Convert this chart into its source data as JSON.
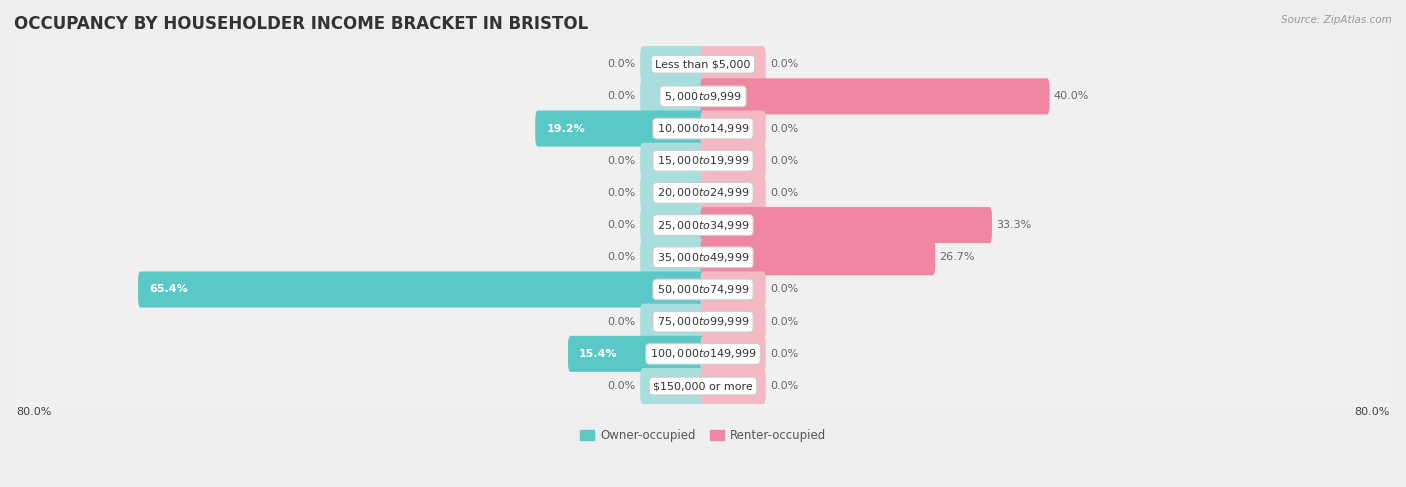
{
  "title": "OCCUPANCY BY HOUSEHOLDER INCOME BRACKET IN BRISTOL",
  "source": "Source: ZipAtlas.com",
  "categories": [
    "Less than $5,000",
    "$5,000 to $9,999",
    "$10,000 to $14,999",
    "$15,000 to $19,999",
    "$20,000 to $24,999",
    "$25,000 to $34,999",
    "$35,000 to $49,999",
    "$50,000 to $74,999",
    "$75,000 to $99,999",
    "$100,000 to $149,999",
    "$150,000 or more"
  ],
  "owner_values": [
    0.0,
    0.0,
    19.2,
    0.0,
    0.0,
    0.0,
    0.0,
    65.4,
    0.0,
    15.4,
    0.0
  ],
  "renter_values": [
    0.0,
    40.0,
    0.0,
    0.0,
    0.0,
    33.3,
    26.7,
    0.0,
    0.0,
    0.0,
    0.0
  ],
  "owner_color": "#5BC8C8",
  "renter_color": "#F087A0",
  "owner_color_stub": "#A8DEDE",
  "renter_color_stub": "#F5B8C5",
  "owner_label": "Owner-occupied",
  "renter_label": "Renter-occupied",
  "xlim": 80.0,
  "stub_size": 7.0,
  "bar_height": 0.52,
  "background_color": "#eeeeee",
  "row_bg_color": "#f7f7f7",
  "title_fontsize": 12,
  "label_fontsize": 8,
  "category_fontsize": 8,
  "axis_label_fontsize": 8,
  "source_fontsize": 7.5
}
